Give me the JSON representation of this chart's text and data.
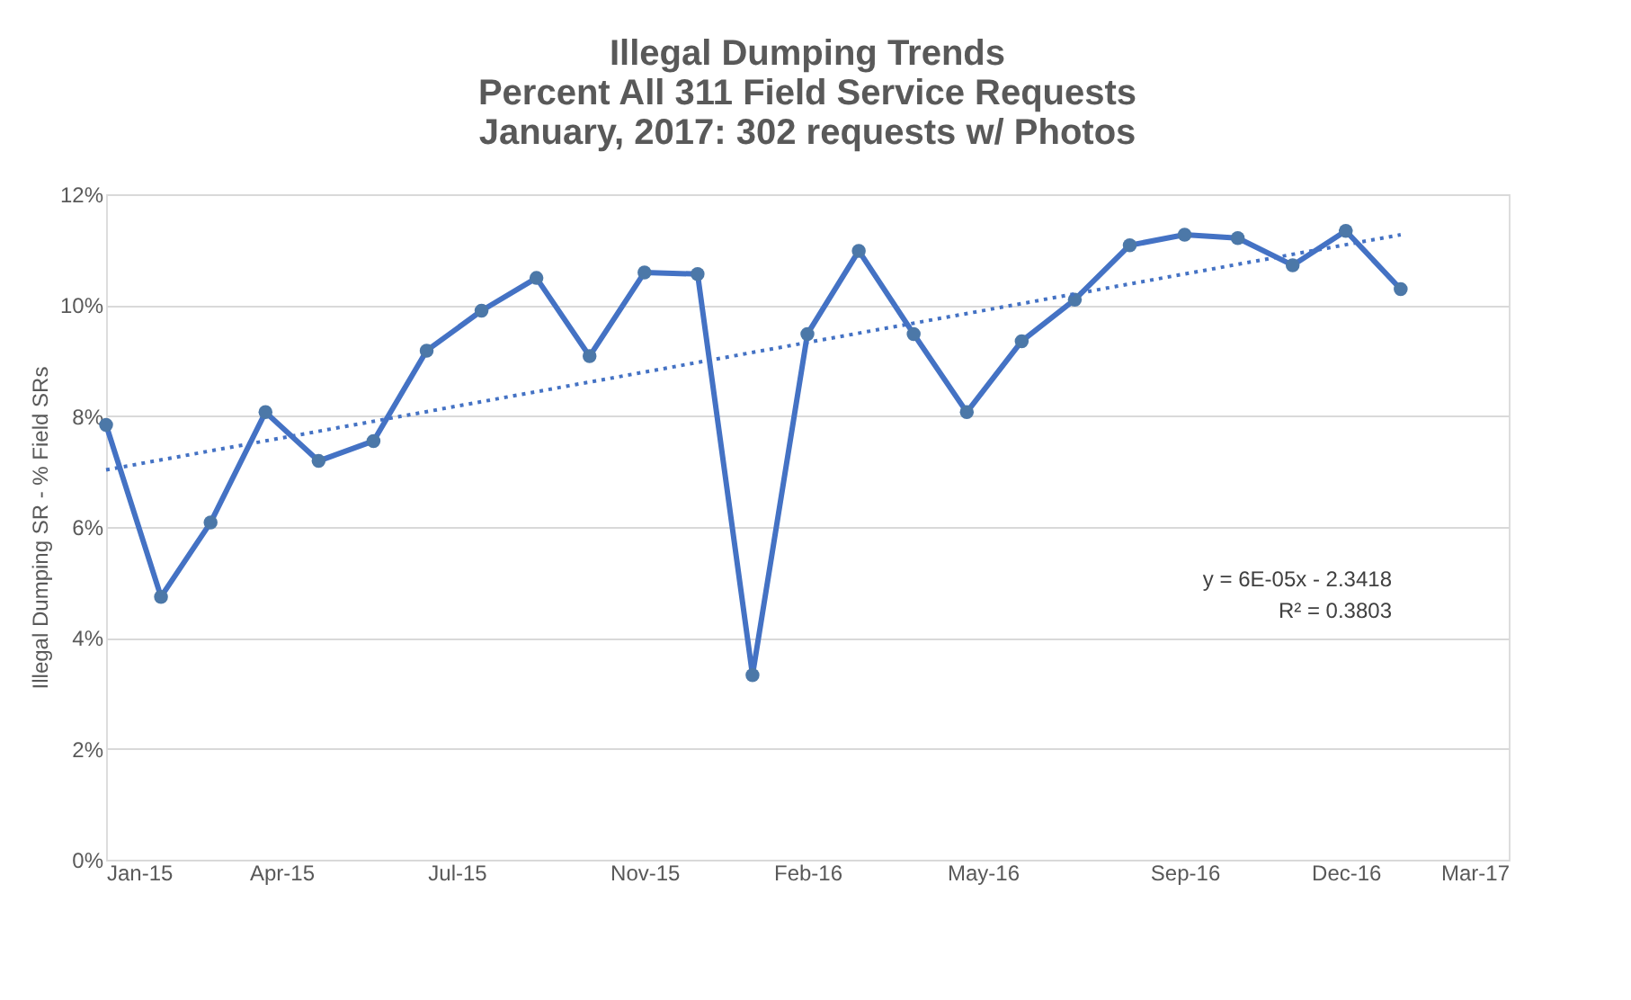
{
  "chart_data": {
    "type": "line",
    "title": "Illegal Dumping Trends\nPercent All 311 Field Service Requests\nJanuary, 2017: 302 requests w/ Photos",
    "ylabel": "Illegal Dumping SR - % Field SRs",
    "x": [
      "2015-01-01",
      "2015-02-01",
      "2015-03-01",
      "2015-04-01",
      "2015-05-01",
      "2015-06-01",
      "2015-07-01",
      "2015-08-01",
      "2015-09-01",
      "2015-10-01",
      "2015-11-01",
      "2015-12-01",
      "2016-01-01",
      "2016-02-01",
      "2016-03-01",
      "2016-04-01",
      "2016-05-01",
      "2016-06-01",
      "2016-07-01",
      "2016-08-01",
      "2016-09-01",
      "2016-10-01",
      "2016-11-01",
      "2016-12-01",
      "2017-01-01"
    ],
    "series": [
      {
        "color": "#4472c4",
        "marker": "circle",
        "line_style": "solid",
        "values": [
          7.84,
          4.74,
          6.08,
          8.07,
          7.19,
          7.55,
          9.18,
          9.9,
          10.49,
          9.08,
          10.59,
          10.56,
          3.33,
          9.48,
          10.98,
          9.48,
          8.07,
          9.35,
          10.1,
          11.08,
          11.27,
          11.21,
          10.72,
          11.34,
          10.29
        ]
      },
      {
        "type": "line",
        "color": "#4472c4",
        "marker": "none",
        "line_style": "dotted",
        "x": [
          "2015-01-01",
          "2017-01-01"
        ],
        "values": [
          7.03,
          11.27
        ]
      }
    ],
    "xlim": [
      "2015-01-01",
      "2017-03-03"
    ],
    "xticks": [
      {
        "value": "2015-01-01",
        "label": "Jan-15"
      },
      {
        "value": "2015-04-10",
        "label": "Apr-15"
      },
      {
        "value": "2015-07-18",
        "label": "Jul-15"
      },
      {
        "value": "2015-11-01",
        "label": "Nov-15"
      },
      {
        "value": "2016-02-01",
        "label": "Feb-16"
      },
      {
        "value": "2016-05-10",
        "label": "May-16"
      },
      {
        "value": "2016-09-01",
        "label": "Sep-16"
      },
      {
        "value": "2016-12-01",
        "label": "Dec-16"
      },
      {
        "value": "2017-03-03",
        "label": "Mar-17"
      }
    ],
    "ylim": [
      0,
      12
    ],
    "yticks": [
      {
        "value": 0,
        "label": "0%"
      },
      {
        "value": 2,
        "label": "2%"
      },
      {
        "value": 4,
        "label": "4%"
      },
      {
        "value": 6,
        "label": "6%"
      },
      {
        "value": 8,
        "label": "8%"
      },
      {
        "value": 10,
        "label": "10%"
      },
      {
        "value": 12,
        "label": "12%"
      }
    ],
    "grid": "y",
    "annotations": [
      "y = 6E-05x - 2.3418",
      "R² = 0.3803"
    ]
  }
}
